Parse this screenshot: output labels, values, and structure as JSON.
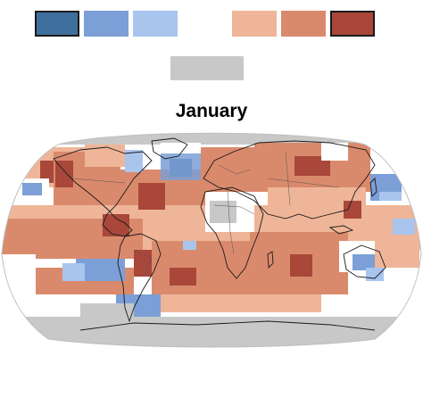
{
  "title": "January",
  "legend": {
    "swatches": [
      {
        "color": "#3f6f9d",
        "outlined": true
      },
      {
        "color": "#7b9fd6",
        "outlined": false
      },
      {
        "color": "#a9c5ee",
        "outlined": false
      },
      {
        "color": "#efb598",
        "outlined": false
      },
      {
        "color": "#da8a6c",
        "outlined": false
      },
      {
        "color": "#a8473a",
        "outlined": true
      }
    ],
    "no_data_color": "#c8c8c8"
  },
  "map": {
    "projection": "robinson",
    "ocean_no_data_color": "#c8c8c8",
    "neutral_color": "#ffffff",
    "coastline_color": "#1a1a1a",
    "border_color": "#555555"
  }
}
